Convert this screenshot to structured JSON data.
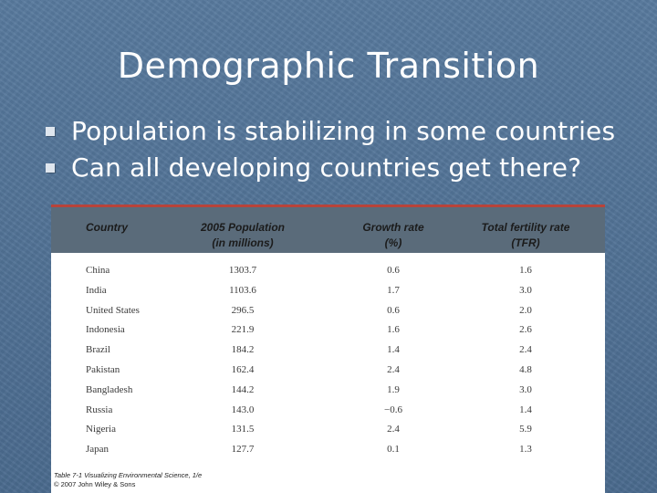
{
  "slide": {
    "title": "Demographic Transition",
    "bullets": [
      "Population is stabilizing in some countries",
      "Can all developing countries get there?"
    ]
  },
  "table": {
    "headers": {
      "country": "Country",
      "population_line1": "2005 Population",
      "population_line2": "(in millions)",
      "growth_line1": "Growth rate",
      "growth_line2": "(%)",
      "tfr_line1": "Total fertility rate",
      "tfr_line2": "(TFR)"
    },
    "rows": [
      {
        "country": "China",
        "population": "1303.7",
        "growth": "0.6",
        "tfr": "1.6"
      },
      {
        "country": "India",
        "population": "1103.6",
        "growth": "1.7",
        "tfr": "3.0"
      },
      {
        "country": "United States",
        "population": "296.5",
        "growth": "0.6",
        "tfr": "2.0"
      },
      {
        "country": "Indonesia",
        "population": "221.9",
        "growth": "1.6",
        "tfr": "2.6"
      },
      {
        "country": "Brazil",
        "population": "184.2",
        "growth": "1.4",
        "tfr": "2.4"
      },
      {
        "country": "Pakistan",
        "population": "162.4",
        "growth": "2.4",
        "tfr": "4.8"
      },
      {
        "country": "Bangladesh",
        "population": "144.2",
        "growth": "1.9",
        "tfr": "3.0"
      },
      {
        "country": "Russia",
        "population": "143.0",
        "growth": "−0.6",
        "tfr": "1.4"
      },
      {
        "country": "Nigeria",
        "population": "131.5",
        "growth": "2.4",
        "tfr": "5.9"
      },
      {
        "country": "Japan",
        "population": "127.7",
        "growth": "0.1",
        "tfr": "1.3"
      }
    ],
    "caption_line1": "Table 7-1 Visualizing Environmental Science, 1/e",
    "caption_line2": "© 2007 John Wiley & Sons"
  }
}
